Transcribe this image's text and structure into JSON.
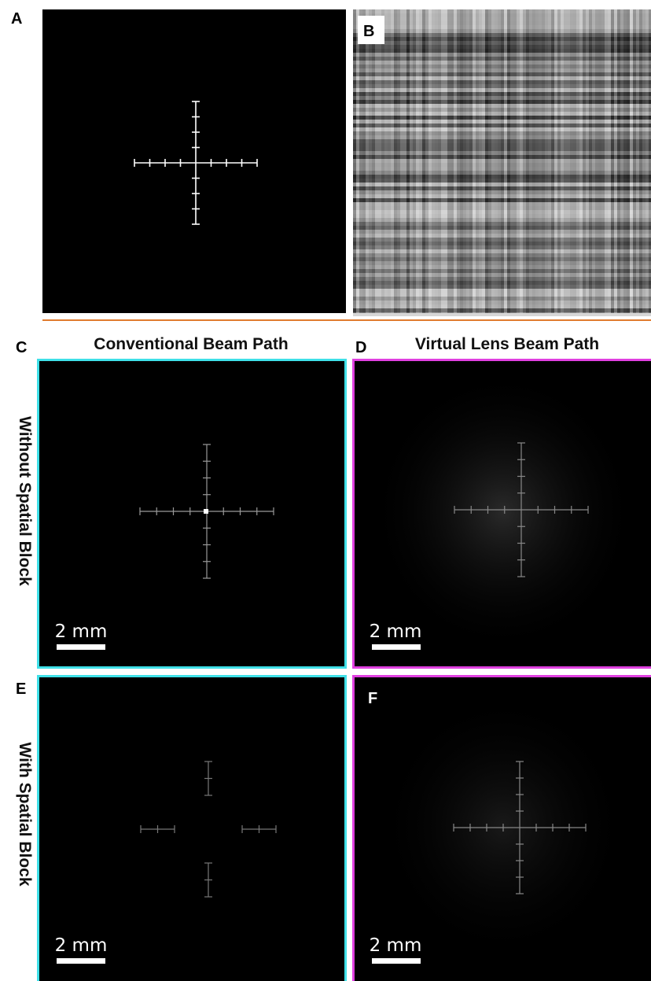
{
  "panels": [
    {
      "label": "A"
    },
    {
      "label": "B"
    },
    {
      "label": "C"
    },
    {
      "label": "D"
    },
    {
      "label": "E"
    },
    {
      "label": "F"
    }
  ],
  "columns": {
    "left": "Conventional Beam Path",
    "right": "Virtual Lens Beam Path"
  },
  "rows": {
    "top": "Without Spatial Block",
    "bottom": "With Spatial Block"
  },
  "scale_bars": [
    "2 mm",
    "2 mm",
    "2 mm",
    "2 mm"
  ]
}
